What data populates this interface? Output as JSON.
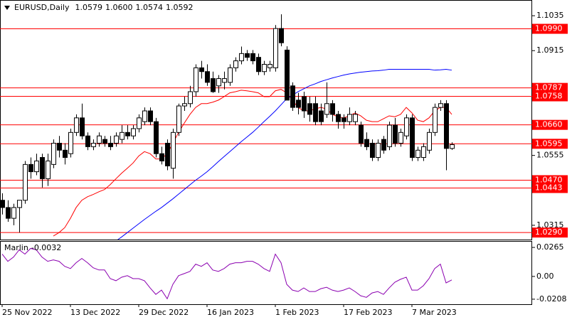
{
  "chart_data": [
    {
      "type": "candlestick",
      "symbol": "EURUSD,Daily",
      "last_bar_labels": [
        "1.0579",
        "1.0600",
        "1.0574",
        "1.0592"
      ],
      "up_color": "#ffffff",
      "down_color": "#000000",
      "open": [
        1.0401,
        1.0376,
        1.0339,
        1.0376,
        1.0401,
        1.0524,
        1.0499,
        1.0548,
        1.0475,
        1.0524,
        1.0597,
        1.0573,
        1.0561,
        1.0634,
        1.0684,
        1.0622,
        1.0585,
        1.0597,
        1.061,
        1.0597,
        1.0597,
        1.061,
        1.0634,
        1.0622,
        1.0647,
        1.0671,
        1.0708,
        1.0671,
        1.0561,
        1.0597,
        1.0511,
        1.0634,
        1.0725,
        1.0733,
        1.0774,
        1.0856,
        1.0843,
        1.0819,
        1.0794,
        1.0806,
        1.0806,
        1.0856,
        1.088,
        1.0905,
        1.0905,
        1.0892,
        1.0843,
        1.0856,
        1.0856,
        1.0991,
        1.0917,
        1.0794,
        1.0745,
        1.0757,
        1.0733,
        1.0733,
        1.0708,
        1.0696,
        1.0733,
        1.0696,
        1.0684,
        1.0671,
        1.0671,
        1.0659,
        1.061,
        1.0597,
        1.0548,
        1.061,
        1.0585,
        1.0659,
        1.0597,
        1.0622,
        1.0684,
        1.0548,
        1.0548,
        1.0573,
        1.0634,
        1.072,
        1.0733,
        1.0579
      ],
      "high": [
        1.0425,
        1.0401,
        1.0389,
        1.0401,
        1.0536,
        1.0548,
        1.0561,
        1.0561,
        1.0561,
        1.061,
        1.0622,
        1.0597,
        1.0647,
        1.0696,
        1.0733,
        1.0634,
        1.061,
        1.0634,
        1.0622,
        1.0622,
        1.0634,
        1.0659,
        1.0659,
        1.0659,
        1.0696,
        1.072,
        1.072,
        1.0684,
        1.0585,
        1.061,
        1.0647,
        1.0733,
        1.0757,
        1.0794,
        1.0868,
        1.088,
        1.0868,
        1.0843,
        1.0831,
        1.0843,
        1.0868,
        1.0892,
        1.0929,
        1.0917,
        1.0917,
        1.0905,
        1.088,
        1.088,
        1.1003,
        1.104,
        1.093,
        1.0806,
        1.077,
        1.0774,
        1.0757,
        1.0757,
        1.0733,
        1.0806,
        1.0745,
        1.0708,
        1.0696,
        1.072,
        1.0708,
        1.0671,
        1.0634,
        1.061,
        1.061,
        1.0622,
        1.0671,
        1.0684,
        1.0647,
        1.0696,
        1.0696,
        1.0585,
        1.0597,
        1.0647,
        1.0733,
        1.0745,
        1.0745,
        1.06
      ],
      "low": [
        1.0352,
        1.0327,
        1.0315,
        1.029,
        1.0389,
        1.0475,
        1.0487,
        1.0445,
        1.045,
        1.0511,
        1.0548,
        1.0524,
        1.0548,
        1.0622,
        1.061,
        1.0573,
        1.0573,
        1.0585,
        1.0585,
        1.0573,
        1.0585,
        1.0597,
        1.061,
        1.061,
        1.0634,
        1.0659,
        1.0659,
        1.0548,
        1.0524,
        1.0504,
        1.0475,
        1.0622,
        1.0708,
        1.072,
        1.0757,
        1.0819,
        1.0794,
        1.077,
        1.077,
        1.0782,
        1.0794,
        1.0843,
        1.0868,
        1.088,
        1.0868,
        1.0831,
        1.0831,
        1.0843,
        1.0843,
        1.093,
        1.0745,
        1.0708,
        1.0696,
        1.0684,
        1.0671,
        1.0659,
        1.0659,
        1.0684,
        1.0671,
        1.0647,
        1.0647,
        1.0659,
        1.0659,
        1.0585,
        1.0573,
        1.0536,
        1.0536,
        1.0561,
        1.0573,
        1.0585,
        1.0585,
        1.061,
        1.0536,
        1.0536,
        1.0536,
        1.0561,
        1.0622,
        1.0708,
        1.0504,
        1.0574
      ],
      "close": [
        1.0376,
        1.0339,
        1.0376,
        1.0401,
        1.0524,
        1.0499,
        1.0536,
        1.0475,
        1.0536,
        1.0597,
        1.0573,
        1.0548,
        1.0634,
        1.0684,
        1.0622,
        1.0585,
        1.0597,
        1.0622,
        1.0597,
        1.0585,
        1.0622,
        1.0634,
        1.0622,
        1.0647,
        1.0684,
        1.0708,
        1.0671,
        1.0561,
        1.0536,
        1.0519,
        1.0634,
        1.0725,
        1.0733,
        1.0774,
        1.0856,
        1.0843,
        1.0806,
        1.0774,
        1.0819,
        1.0819,
        1.0856,
        1.088,
        1.0905,
        1.0892,
        1.088,
        1.0843,
        1.0868,
        1.0868,
        1.0991,
        1.0942,
        1.0745,
        1.072,
        1.072,
        1.0708,
        1.0696,
        1.0671,
        1.0671,
        1.0733,
        1.0696,
        1.0671,
        1.0671,
        1.0696,
        1.0696,
        1.0597,
        1.0585,
        1.0548,
        1.0597,
        1.0573,
        1.0659,
        1.0597,
        1.0634,
        1.0684,
        1.0548,
        1.0573,
        1.0585,
        1.0634,
        1.072,
        1.0733,
        1.0579,
        1.0592
      ],
      "series": [
        {
          "color": "#ff0000",
          "values": [
            null,
            null,
            null,
            null,
            null,
            null,
            null,
            null,
            null,
            1.0278,
            1.029,
            1.0307,
            1.0339,
            1.0376,
            1.0401,
            1.0413,
            1.0421,
            1.043,
            1.0438,
            1.0455,
            1.0475,
            1.0494,
            1.0511,
            1.0529,
            1.0553,
            1.0568,
            1.0561,
            1.0543,
            1.0543,
            1.0561,
            1.0597,
            1.0634,
            1.0666,
            1.0696,
            1.072,
            1.0733,
            1.0733,
            1.0738,
            1.0745,
            1.0757,
            1.077,
            1.0774,
            1.0779,
            1.0777,
            1.0774,
            1.077,
            1.0757,
            1.0757,
            1.0777,
            1.0782,
            1.077,
            1.0745,
            1.072,
            1.0708,
            1.0708,
            1.0715,
            1.072,
            1.0715,
            1.0696,
            1.0688,
            1.0684,
            1.0691,
            1.0701,
            1.0691,
            1.0676,
            1.0671,
            1.0671,
            1.0681,
            1.0691,
            1.0688,
            1.0696,
            1.072,
            1.0701,
            1.0676,
            1.0671,
            1.0684,
            1.0708,
            1.072,
            1.072,
            1.0696
          ]
        },
        {
          "color": "#0000ff",
          "values": [
            null,
            null,
            null,
            null,
            null,
            null,
            null,
            null,
            null,
            null,
            null,
            null,
            null,
            null,
            null,
            null,
            null,
            null,
            null,
            null,
            1.0261,
            1.0275,
            1.029,
            1.0305,
            1.032,
            1.0335,
            1.0349,
            1.0363,
            1.0376,
            1.0391,
            1.0406,
            1.0422,
            1.0438,
            1.0454,
            1.047,
            1.0484,
            1.0499,
            1.0516,
            1.0534,
            1.0551,
            1.0568,
            1.0585,
            1.0602,
            1.0618,
            1.0634,
            1.0652,
            1.0671,
            1.0689,
            1.0708,
            1.0729,
            1.075,
            1.0762,
            1.0774,
            1.0784,
            1.0794,
            1.0801,
            1.0809,
            1.0815,
            1.0821,
            1.0826,
            1.0831,
            1.0835,
            1.0838,
            1.0841,
            1.0843,
            1.0845,
            1.0846,
            1.0848,
            1.0851,
            1.0851,
            1.0851,
            1.0851,
            1.0851,
            1.0851,
            1.0851,
            1.0851,
            1.0848,
            1.0849,
            1.0851,
            1.0848
          ]
        }
      ],
      "levels": [
        {
          "value": 1.099,
          "label": "1.0990"
        },
        1.0787,
        1.0758,
        {
          "value": 1.066,
          "label": "1.0660"
        },
        1.0595,
        {
          "value": 1.047,
          "label": "1.0470"
        },
        1.0443,
        {
          "value": 1.029,
          "label": "1.0290"
        }
      ],
      "level_color": "#ff0000",
      "ylim": [
        1.0266,
        1.1089
      ],
      "yticks": [
        1.1035,
        1.0915,
        1.0555,
        1.0315
      ],
      "xticks": [
        {
          "value": 0,
          "label": "25 Nov 2022"
        },
        {
          "value": 12,
          "label": "13 Dec 2022"
        },
        {
          "value": 24,
          "label": "29 Dec 2022"
        },
        {
          "value": 36,
          "label": "16 Jan 2023"
        },
        {
          "value": 48,
          "label": "1 Feb 2023"
        },
        {
          "value": 60,
          "label": "17 Feb 2023"
        },
        {
          "value": 72,
          "label": "7 Mar 2023"
        }
      ],
      "grid": false
    },
    {
      "type": "line",
      "name": "Marlin",
      "series": [
        {
          "color": "#8b00b0",
          "values": [
            0.0204,
            0.0138,
            0.0177,
            0.0243,
            0.0204,
            0.0256,
            0.0243,
            0.0177,
            0.0138,
            0.0151,
            0.0138,
            0.0092,
            0.0072,
            0.0125,
            0.0164,
            0.0125,
            0.0079,
            0.0059,
            0.0059,
            -0.002,
            -0.0039,
            -0.0007,
            0.0007,
            -0.002,
            -0.002,
            -0.0039,
            -0.0105,
            -0.0164,
            -0.0125,
            -0.0204,
            -0.0072,
            0.0007,
            0.0026,
            0.0046,
            0.0112,
            0.0092,
            0.0125,
            0.0059,
            0.0046,
            0.0072,
            0.0112,
            0.0125,
            0.0125,
            0.0138,
            0.0138,
            0.0112,
            0.0072,
            0.0046,
            0.0204,
            0.0125,
            -0.0072,
            -0.0125,
            -0.0138,
            -0.0105,
            -0.0138,
            -0.0138,
            -0.0112,
            -0.0099,
            -0.0125,
            -0.0138,
            -0.0125,
            -0.0105,
            -0.0138,
            -0.0177,
            -0.0191,
            -0.0151,
            -0.0138,
            -0.0164,
            -0.0105,
            -0.0053,
            -0.0026,
            -0.0007,
            -0.0125,
            -0.0125,
            -0.0085,
            -0.002,
            0.0072,
            0.0112,
            -0.0059,
            -0.0032
          ]
        }
      ],
      "ylim": [
        -0.0254,
        0.0324
      ],
      "yticks": [
        0.0265,
        {
          "value": 0,
          "label": "0.00"
        },
        -0.0208
      ]
    }
  ]
}
